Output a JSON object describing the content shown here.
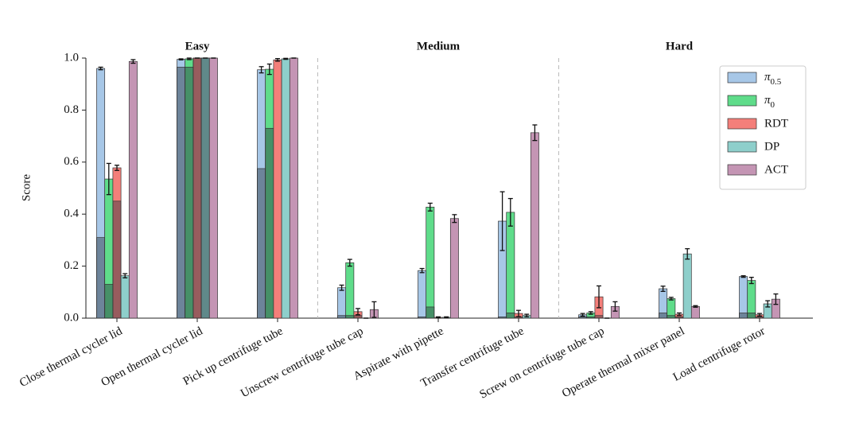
{
  "chart_data": {
    "type": "bar",
    "y_label": "Score",
    "sections": [
      "Easy",
      "Medium",
      "Hard"
    ],
    "categories": [
      "Close thermal cycler lid",
      "Open thermal cycler lid",
      "Pick up centrifuge tube",
      "Unscrew centrifuge tube cap",
      "Aspirate with pipette",
      "Transfer centrifuge tube",
      "Screw on centrifuge tube cap",
      "Operate thermal mixer panel",
      "Load centrifuge rotor"
    ],
    "ylim": [
      0,
      1.0
    ],
    "yticks": [
      {
        "value": 0,
        "label": "0.0"
      },
      0.2,
      0.4,
      0.6,
      0.8,
      {
        "value": 1.0,
        "label": "1.0"
      }
    ],
    "legend": "upper right",
    "series": [
      {
        "name": "π0.5",
        "color": "#a7c7e7",
        "values": [
          0.96,
          0.995,
          0.955,
          0.117,
          0.183,
          0.373,
          0.013,
          0.113,
          0.16
        ],
        "errors": [
          0.005,
          0.002,
          0.012,
          0.01,
          0.008,
          0.113,
          0.005,
          0.01,
          0.003
        ],
        "inner_values": [
          0.31,
          0.965,
          0.575,
          0.01,
          0.005,
          0.005,
          0.005,
          0.02,
          0.02
        ]
      },
      {
        "name": "π0",
        "color": "#5fdc8a",
        "values": [
          0.535,
          0.997,
          0.957,
          0.213,
          0.427,
          0.407,
          0.02,
          0.075,
          0.145
        ],
        "errors": [
          0.06,
          0.003,
          0.02,
          0.013,
          0.015,
          0.053,
          0.005,
          0.005,
          0.012
        ],
        "inner_values": [
          0.13,
          0.965,
          0.73,
          0.01,
          0.043,
          0.02,
          0.005,
          0.01,
          0.02
        ]
      },
      {
        "name": "RDT",
        "color": "#f47f7a",
        "values": [
          0.578,
          1.0,
          0.993,
          0.025,
          0.003,
          0.018,
          0.082,
          0.015,
          0.013
        ],
        "errors": [
          0.01,
          0,
          0.005,
          0.012,
          0.002,
          0.012,
          0.042,
          0.005,
          0.005
        ],
        "inner_values": [
          0.45,
          1.0,
          0,
          0.01,
          0,
          0.005,
          0.01,
          0.005,
          0.005
        ]
      },
      {
        "name": "DP",
        "color": "#8ecfcb",
        "values": [
          0.163,
          1.0,
          0.997,
          0,
          0.003,
          0.01,
          0,
          0.247,
          0.055
        ],
        "errors": [
          0.008,
          0,
          0.002,
          0,
          0.002,
          0.005,
          0,
          0.02,
          0.012
        ],
        "inner_values": [
          0,
          1.0,
          0,
          0,
          0,
          0,
          0,
          0,
          0
        ]
      },
      {
        "name": "ACT",
        "color": "#c495b4",
        "values": [
          0.987,
          1.0,
          1.0,
          0.033,
          0.383,
          0.713,
          0.045,
          0.045,
          0.073
        ],
        "errors": [
          0.007,
          0,
          0,
          0.03,
          0.015,
          0.03,
          0.018,
          0.003,
          0.02
        ],
        "inner_values": [
          0,
          0,
          0,
          0,
          0,
          0,
          0,
          0,
          0
        ]
      }
    ]
  }
}
